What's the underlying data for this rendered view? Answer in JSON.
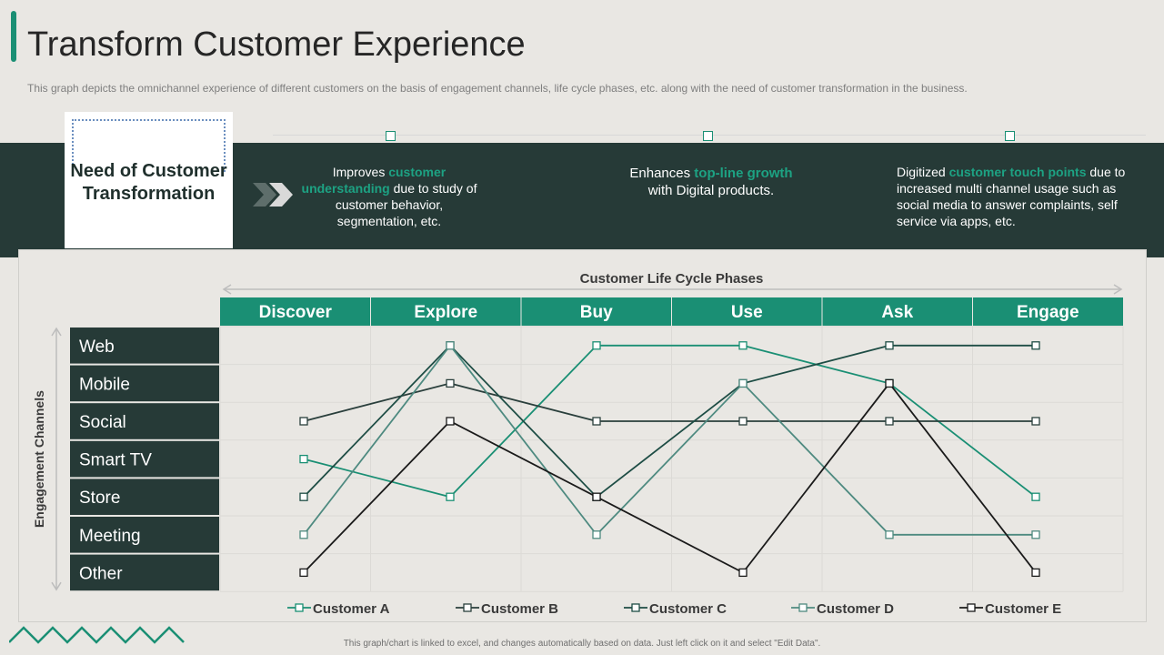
{
  "header": {
    "title": "Transform Customer Experience",
    "subtitle": "This graph depicts the omnichannel experience of different customers on the basis of engagement channels, life cycle phases, etc. along with the need of customer transformation in the business."
  },
  "need_box": {
    "title": "Need of Customer Transformation"
  },
  "points": [
    {
      "pre": "Improves ",
      "highlight": "customer understanding",
      "post": " due to study of customer behavior, segmentation, etc."
    },
    {
      "pre": "Enhances ",
      "highlight": "top-line growth",
      "post": " with Digital products."
    },
    {
      "pre": "Digitized ",
      "highlight": "customer touch points",
      "post": " due to increased multi channel usage such as social media to answer complaints, self service via apps, etc."
    }
  ],
  "footer": "This graph/chart is linked to excel, and changes automatically based on data. Just left click on it and select \"Edit Data\".",
  "colors": {
    "accent": "#1A8F74",
    "dark": "#263A37",
    "highlight": "#1DA283"
  },
  "chart_data": {
    "type": "line",
    "title": "Customer Life Cycle Phases",
    "xlabel": "Customer Life Cycle Phases",
    "ylabel": "Engagement Channels",
    "x": [
      "Discover",
      "Explore",
      "Buy",
      "Use",
      "Ask",
      "Engage"
    ],
    "y_categories": [
      "Web",
      "Mobile",
      "Social",
      "Smart TV",
      "Store",
      "Meeting",
      "Other"
    ],
    "series": [
      {
        "name": "Customer A",
        "color": "#1A8F74",
        "values": [
          "Smart TV",
          "Store",
          "Web",
          "Web",
          "Mobile",
          "Store"
        ]
      },
      {
        "name": "Customer B",
        "color": "#2A3F3C",
        "values": [
          "Social",
          "Mobile",
          "Social",
          "Social",
          "Social",
          "Social"
        ]
      },
      {
        "name": "Customer C",
        "color": "#1E4D45",
        "values": [
          "Store",
          "Web",
          "Store",
          "Mobile",
          "Web",
          "Web"
        ]
      },
      {
        "name": "Customer D",
        "color": "#4E8A80",
        "values": [
          "Meeting",
          "Web",
          "Meeting",
          "Mobile",
          "Meeting",
          "Meeting"
        ]
      },
      {
        "name": "Customer E",
        "color": "#1A1A1A",
        "values": [
          "Other",
          "Social",
          "Store",
          "Other",
          "Mobile",
          "Other"
        ]
      }
    ],
    "legend": "bottom",
    "grid": true
  }
}
